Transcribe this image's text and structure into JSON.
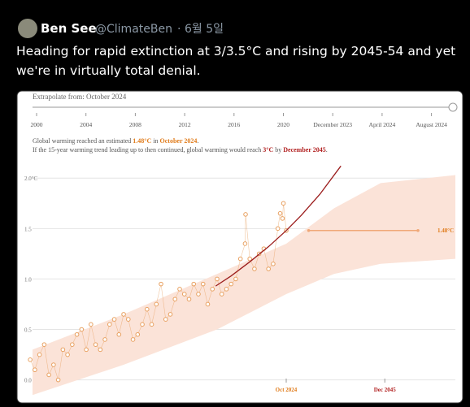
{
  "tweet": {
    "name": "Ben See",
    "handle": "@ClimateBen",
    "separator": "·",
    "date": "6월 5일",
    "text": [
      "Heading for rapid extinction at 3/3.5°C and rising by 2045-54 and yet",
      "we're in virtually total denial."
    ]
  },
  "chart_data": {
    "type": "scatter",
    "slider": {
      "label": "Extrapolate from: October 2024",
      "ticks": [
        "2000",
        "2004",
        "2008",
        "2012",
        "2016",
        "2020",
        "December 2023",
        "April 2024",
        "August 2024"
      ]
    },
    "annotation": [
      [
        {
          "text": "Global warming reached an estimated ",
          "color": "#555555"
        },
        {
          "text": "1.48°C",
          "color": "#e07b1a"
        },
        {
          "text": " in ",
          "color": "#555555"
        },
        {
          "text": "October 2024",
          "color": "#e07b1a"
        },
        {
          "text": ".",
          "color": "#555555"
        }
      ],
      [
        {
          "text": "If the 15-year warming trend leading up to then continued, global warming would reach ",
          "color": "#555555"
        },
        {
          "text": "3°C",
          "color": "#b22222"
        },
        {
          "text": " by ",
          "color": "#555555"
        },
        {
          "text": "December 2045",
          "color": "#b22222"
        },
        {
          "text": ".",
          "color": "#555555"
        }
      ]
    ],
    "xlim": [
      1970.5,
      2061
    ],
    "ylim": [
      -0.18,
      2.05
    ],
    "xticks": [
      {
        "value": 2024.8,
        "label": "Oct 2024"
      },
      {
        "value": 2045.9,
        "label": "Dec 2045"
      }
    ],
    "yticks": [
      {
        "value": 0,
        "label": "0.0"
      },
      {
        "value": 0.5,
        "label": "0.5"
      },
      {
        "value": 1,
        "label": "1.0"
      },
      {
        "value": 1.5,
        "label": "1.5"
      },
      {
        "value": 2,
        "label": "2.0°C"
      }
    ],
    "grid": true,
    "band": {
      "color": "#fbe3d8",
      "x": [
        1970.5,
        1990,
        2010,
        2024.8,
        2035,
        2045,
        2061
      ],
      "lower": [
        -0.15,
        0.15,
        0.5,
        0.85,
        1.05,
        1.15,
        1.2
      ],
      "upper": [
        0.3,
        0.65,
        1.05,
        1.35,
        1.7,
        1.95,
        2.03
      ]
    },
    "series": [
      {
        "color": "#e8a060",
        "x": [
          1970,
          1971,
          1972,
          1973,
          1974,
          1975,
          1976,
          1977,
          1978,
          1979,
          1980,
          1981,
          1982,
          1983,
          1984,
          1985,
          1986,
          1987,
          1988,
          1989,
          1990,
          1991,
          1992,
          1993,
          1994,
          1995,
          1996,
          1997,
          1998,
          1999,
          2000,
          2001,
          2002,
          2003,
          2004,
          2005,
          2006,
          2007,
          2008,
          2009,
          2010,
          2011,
          2012,
          2013,
          2014,
          2015,
          2016,
          2016.1,
          2017,
          2018,
          2019,
          2020,
          2021,
          2022,
          2023,
          2023.5,
          2024,
          2024.2,
          2024.8
        ],
        "values": [
          0.2,
          0.1,
          0.25,
          0.35,
          0.05,
          0.15,
          0.0,
          0.3,
          0.25,
          0.35,
          0.45,
          0.5,
          0.3,
          0.55,
          0.35,
          0.3,
          0.4,
          0.55,
          0.6,
          0.45,
          0.65,
          0.6,
          0.4,
          0.45,
          0.55,
          0.7,
          0.55,
          0.75,
          0.95,
          0.6,
          0.65,
          0.8,
          0.9,
          0.85,
          0.8,
          0.95,
          0.85,
          0.95,
          0.75,
          0.9,
          1.0,
          0.85,
          0.9,
          0.95,
          1.0,
          1.2,
          1.35,
          1.64,
          1.2,
          1.1,
          1.25,
          1.3,
          1.1,
          1.15,
          1.5,
          1.65,
          1.6,
          1.75,
          1.48
        ]
      }
    ],
    "trend": {
      "color": "#9b1c1c",
      "x": [
        2009.7,
        2013,
        2017,
        2021,
        2024.8,
        2028,
        2032,
        2036.5
      ],
      "values": [
        0.93,
        1.03,
        1.17,
        1.32,
        1.48,
        1.63,
        1.84,
        2.12
      ]
    },
    "reference": {
      "color": "#f0a878",
      "x": [
        2029.6,
        2053
      ],
      "values": [
        1.48,
        1.48
      ],
      "label": "1.48°C"
    }
  }
}
